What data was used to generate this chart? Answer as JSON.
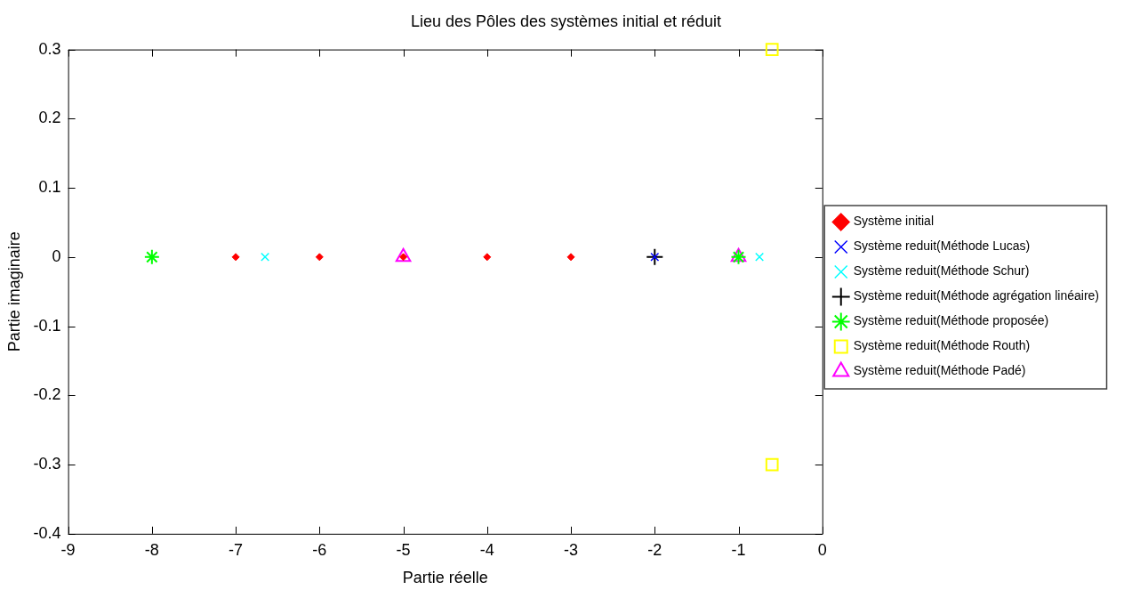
{
  "chart_data": {
    "type": "scatter",
    "title": "Lieu des Pôles des systèmes initial et réduit",
    "xlabel": "Partie réelle",
    "ylabel": "Partie imaginaire",
    "xlim": [
      -9,
      0
    ],
    "xticks": [
      -9,
      -8,
      -7,
      -6,
      -5,
      -4,
      -3,
      -2,
      -1,
      0
    ],
    "ylim": [
      -0.4,
      0.3
    ],
    "yticks": [
      -0.4,
      -0.3,
      -0.2,
      -0.1,
      0,
      0.1,
      0.2,
      0.3
    ],
    "grid": false,
    "legend": "right",
    "series": [
      {
        "name": "Système initial",
        "color": "#ff0000",
        "marker": "diamond",
        "x": [
          -7,
          -6,
          -5,
          -4,
          -3
        ],
        "values": [
          0,
          0,
          0,
          0,
          0
        ]
      },
      {
        "name": "Système reduit(Méthode Lucas)",
        "color": "#0000ff",
        "marker": "x",
        "x": [
          -2
        ],
        "values": [
          0
        ]
      },
      {
        "name": "Système reduit(Méthode Schur)",
        "color": "#00ffff",
        "marker": "x",
        "x": [
          -6.65,
          -0.75
        ],
        "values": [
          0,
          0
        ]
      },
      {
        "name": "Système reduit(Méthode agrégation linéaire)",
        "color": "#000000",
        "marker": "plus",
        "x": [
          -2
        ],
        "values": [
          0
        ]
      },
      {
        "name": "Système reduit(Méthode proposée)",
        "color": "#00ff00",
        "marker": "cross",
        "x": [
          -8,
          -1
        ],
        "values": [
          0,
          0
        ]
      },
      {
        "name": "Système reduit(Méthode Routh)",
        "color": "#ffff00",
        "marker": "square",
        "x": [
          -0.6,
          -0.6
        ],
        "values": [
          0.3,
          -0.3
        ]
      },
      {
        "name": "Système reduit(Méthode Padé)",
        "color": "#ff00ff",
        "marker": "triangle",
        "x": [
          -5,
          -1
        ],
        "values": [
          0,
          0
        ]
      }
    ]
  }
}
